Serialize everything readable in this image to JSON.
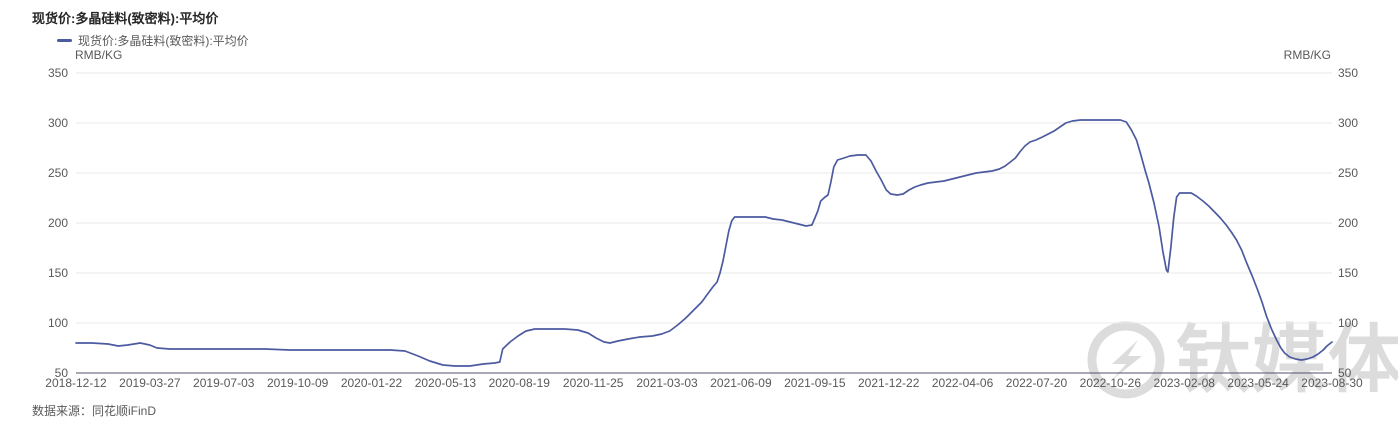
{
  "page": {
    "title": "现货价:多晶硅料(致密料):平均价"
  },
  "legend": {
    "label": "现货价:多晶硅料(致密料):平均价"
  },
  "axes": {
    "unit_left": "RMB/KG",
    "unit_right": "RMB/KG"
  },
  "footer": {
    "source": "数据来源：同花顺iFinD"
  },
  "watermark": {
    "text": "钛媒体"
  },
  "colors": {
    "line": "#4c5aa0",
    "grid": "#e9e9e9",
    "axis_line": "#52526b",
    "text": "#595959",
    "title": "#262626",
    "watermark": "#dcdcdc"
  },
  "chart_data": {
    "type": "line",
    "title": "现货价:多晶硅料(致密料):平均价",
    "xlabel": "",
    "ylabel": "RMB/KG",
    "ylim": [
      50,
      350
    ],
    "y_ticks": [
      50,
      100,
      150,
      200,
      250,
      300,
      350
    ],
    "grid": true,
    "legend_position": "top-left",
    "x_start": "2018-12-12",
    "x_end": "2023-08-30",
    "x_total_days": 1722,
    "x_tick_labels": [
      "2018-12-12",
      "2019-03-27",
      "2019-07-03",
      "2019-10-09",
      "2020-01-22",
      "2020-05-13",
      "2020-08-19",
      "2020-11-25",
      "2021-03-03",
      "2021-06-09",
      "2021-09-15",
      "2021-12-22",
      "2022-04-06",
      "2022-07-20",
      "2022-10-26",
      "2023-02-08",
      "2023-05-24",
      "2023-08-30"
    ],
    "series": [
      {
        "name": "现货价:多晶硅料(致密料):平均价",
        "unit": "RMB/KG",
        "color": "#4c5aa0",
        "points_format": [
          "days_since_2018-12-12",
          "price_rmb_per_kg"
        ],
        "points": [
          [
            0,
            80
          ],
          [
            22,
            80
          ],
          [
            44,
            79
          ],
          [
            58,
            77
          ],
          [
            71,
            78
          ],
          [
            88,
            80
          ],
          [
            101,
            78
          ],
          [
            111,
            75
          ],
          [
            129,
            74
          ],
          [
            156,
            74
          ],
          [
            191,
            74
          ],
          [
            225,
            74
          ],
          [
            259,
            74
          ],
          [
            293,
            73
          ],
          [
            328,
            73
          ],
          [
            362,
            73
          ],
          [
            396,
            73
          ],
          [
            431,
            73
          ],
          [
            451,
            72
          ],
          [
            469,
            67
          ],
          [
            485,
            62
          ],
          [
            503,
            58
          ],
          [
            520,
            57
          ],
          [
            540,
            57
          ],
          [
            558,
            59
          ],
          [
            574,
            60
          ],
          [
            581,
            61
          ],
          [
            585,
            74
          ],
          [
            595,
            81
          ],
          [
            606,
            87
          ],
          [
            617,
            92
          ],
          [
            629,
            94
          ],
          [
            650,
            94
          ],
          [
            670,
            94
          ],
          [
            688,
            93
          ],
          [
            702,
            90
          ],
          [
            713,
            85
          ],
          [
            724,
            81
          ],
          [
            732,
            80
          ],
          [
            743,
            82
          ],
          [
            757,
            84
          ],
          [
            773,
            86
          ],
          [
            790,
            87
          ],
          [
            803,
            89
          ],
          [
            814,
            92
          ],
          [
            825,
            98
          ],
          [
            836,
            105
          ],
          [
            847,
            113
          ],
          [
            858,
            121
          ],
          [
            866,
            129
          ],
          [
            873,
            136
          ],
          [
            879,
            141
          ],
          [
            883,
            150
          ],
          [
            887,
            162
          ],
          [
            891,
            177
          ],
          [
            895,
            192
          ],
          [
            899,
            202
          ],
          [
            903,
            206
          ],
          [
            917,
            206
          ],
          [
            931,
            206
          ],
          [
            945,
            206
          ],
          [
            956,
            204
          ],
          [
            968,
            203
          ],
          [
            979,
            201
          ],
          [
            990,
            199
          ],
          [
            1001,
            197
          ],
          [
            1009,
            198
          ],
          [
            1013,
            205
          ],
          [
            1017,
            212
          ],
          [
            1021,
            222
          ],
          [
            1027,
            226
          ],
          [
            1031,
            228
          ],
          [
            1035,
            241
          ],
          [
            1039,
            256
          ],
          [
            1044,
            263
          ],
          [
            1053,
            265
          ],
          [
            1061,
            267
          ],
          [
            1072,
            268
          ],
          [
            1083,
            268
          ],
          [
            1090,
            262
          ],
          [
            1097,
            252
          ],
          [
            1104,
            243
          ],
          [
            1111,
            233
          ],
          [
            1117,
            229
          ],
          [
            1126,
            228
          ],
          [
            1134,
            229
          ],
          [
            1142,
            233
          ],
          [
            1150,
            236
          ],
          [
            1158,
            238
          ],
          [
            1168,
            240
          ],
          [
            1179,
            241
          ],
          [
            1190,
            242
          ],
          [
            1201,
            244
          ],
          [
            1212,
            246
          ],
          [
            1223,
            248
          ],
          [
            1234,
            250
          ],
          [
            1245,
            251
          ],
          [
            1256,
            252
          ],
          [
            1266,
            254
          ],
          [
            1274,
            257
          ],
          [
            1281,
            261
          ],
          [
            1288,
            265
          ],
          [
            1294,
            271
          ],
          [
            1301,
            277
          ],
          [
            1308,
            281
          ],
          [
            1316,
            283
          ],
          [
            1325,
            286
          ],
          [
            1333,
            289
          ],
          [
            1341,
            292
          ],
          [
            1349,
            296
          ],
          [
            1357,
            300
          ],
          [
            1366,
            302
          ],
          [
            1377,
            303
          ],
          [
            1390,
            303
          ],
          [
            1404,
            303
          ],
          [
            1418,
            303
          ],
          [
            1432,
            303
          ],
          [
            1440,
            301
          ],
          [
            1447,
            293
          ],
          [
            1454,
            283
          ],
          [
            1460,
            268
          ],
          [
            1466,
            252
          ],
          [
            1471,
            240
          ],
          [
            1478,
            220
          ],
          [
            1485,
            196
          ],
          [
            1490,
            172
          ],
          [
            1495,
            153
          ],
          [
            1497,
            151
          ],
          [
            1501,
            175
          ],
          [
            1505,
            205
          ],
          [
            1509,
            226
          ],
          [
            1513,
            230
          ],
          [
            1521,
            230
          ],
          [
            1529,
            230
          ],
          [
            1536,
            227
          ],
          [
            1545,
            222
          ],
          [
            1553,
            217
          ],
          [
            1561,
            211
          ],
          [
            1569,
            205
          ],
          [
            1577,
            198
          ],
          [
            1584,
            191
          ],
          [
            1591,
            183
          ],
          [
            1598,
            173
          ],
          [
            1605,
            160
          ],
          [
            1612,
            148
          ],
          [
            1619,
            135
          ],
          [
            1626,
            121
          ],
          [
            1632,
            107
          ],
          [
            1639,
            94
          ],
          [
            1646,
            83
          ],
          [
            1652,
            75
          ],
          [
            1657,
            70
          ],
          [
            1664,
            66
          ],
          [
            1672,
            64
          ],
          [
            1680,
            63
          ],
          [
            1688,
            64
          ],
          [
            1696,
            66
          ],
          [
            1703,
            69
          ],
          [
            1710,
            73
          ],
          [
            1715,
            77
          ],
          [
            1722,
            81
          ]
        ]
      }
    ]
  }
}
